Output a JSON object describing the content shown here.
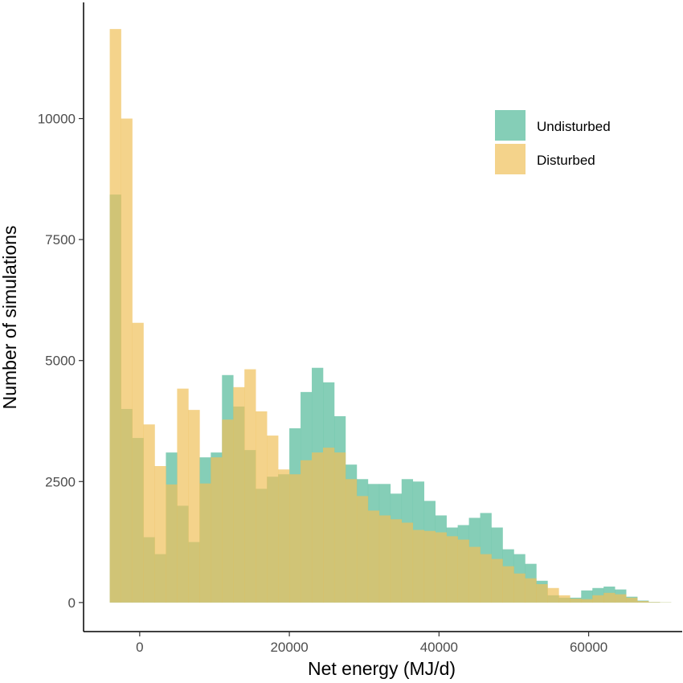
{
  "chart_data": {
    "type": "histogram",
    "title": "",
    "xlabel": "Net energy (MJ/d)",
    "ylabel": "Number of simulations",
    "xlim": [
      -7500,
      72500
    ],
    "ylim": [
      -600,
      12400
    ],
    "x_ticks": [
      0,
      20000,
      40000,
      60000
    ],
    "x_tick_labels": [
      "0",
      "20000",
      "40000",
      "60000"
    ],
    "y_ticks": [
      0,
      2500,
      5000,
      7500,
      10000
    ],
    "y_tick_labels": [
      "0",
      "2500",
      "5000",
      "7500",
      "10000"
    ],
    "bin_start": -4000,
    "bin_width": 1500,
    "grid": false,
    "legend_position": "top-right",
    "series": [
      {
        "name": "Undisturbed",
        "color": "#66c2a5",
        "opacity": 0.8,
        "values": [
          8430,
          4000,
          3400,
          1350,
          1000,
          3100,
          2000,
          1250,
          3000,
          3100,
          4700,
          4050,
          3150,
          2350,
          2600,
          2650,
          3600,
          4350,
          4850,
          4550,
          3850,
          2850,
          2550,
          2450,
          2450,
          2250,
          2550,
          2500,
          2100,
          1800,
          1550,
          1600,
          1750,
          1850,
          1550,
          1100,
          1000,
          800,
          450,
          150,
          100,
          100,
          250,
          300,
          330,
          270,
          120,
          40,
          10,
          5
        ]
      },
      {
        "name": "Disturbed",
        "color": "#f0c05a",
        "opacity": 0.7,
        "values": [
          11850,
          10000,
          5780,
          3680,
          2820,
          2440,
          4420,
          3980,
          2460,
          3000,
          3780,
          4450,
          4820,
          3950,
          3450,
          2750,
          2650,
          2940,
          3100,
          3200,
          3100,
          2550,
          2200,
          1900,
          1800,
          1720,
          1650,
          1500,
          1480,
          1450,
          1370,
          1300,
          1150,
          1000,
          900,
          750,
          600,
          500,
          380,
          300,
          150,
          80,
          70,
          150,
          200,
          170,
          100,
          30,
          10,
          5
        ]
      }
    ]
  }
}
